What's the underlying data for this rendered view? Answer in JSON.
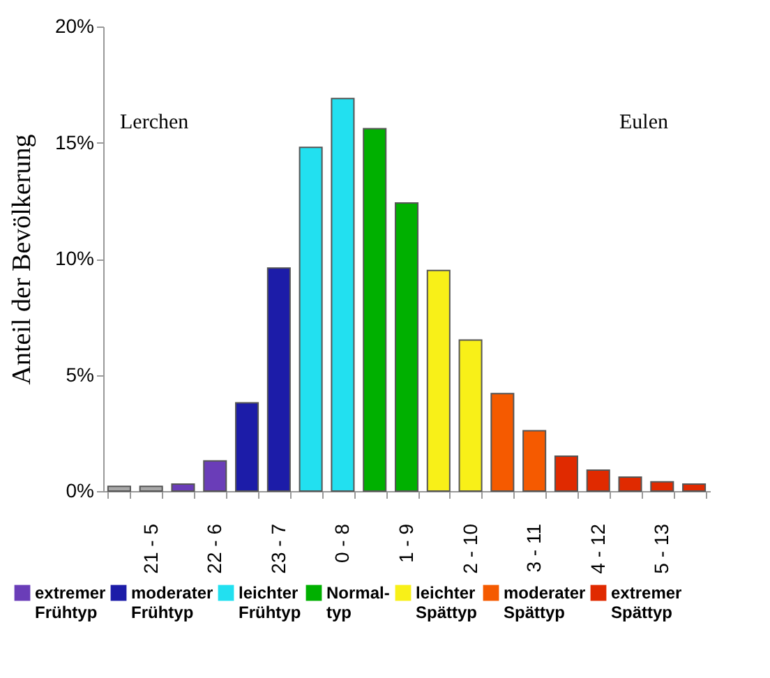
{
  "chart_data": {
    "type": "bar",
    "ylabel": "Anteil der Bevölkerung",
    "categories": [
      null,
      "21 - 5",
      null,
      "22 - 6",
      null,
      "23 - 7",
      null,
      "0 - 8",
      null,
      "1 - 9",
      null,
      "2 - 10",
      null,
      "3 - 11",
      null,
      "4 - 12",
      null,
      "5 - 13",
      null
    ],
    "series": [
      {
        "color": "#a8a8a8",
        "values": [
          0.2,
          0.2,
          null,
          null,
          null,
          null,
          null,
          null,
          null,
          null,
          null,
          null,
          null,
          null,
          null,
          null,
          null,
          null,
          null
        ]
      },
      {
        "name": "extremer Frühtyp",
        "color": "#6a3db8",
        "values": [
          null,
          null,
          0.3,
          1.3,
          null,
          null,
          null,
          null,
          null,
          null,
          null,
          null,
          null,
          null,
          null,
          null,
          null,
          null,
          null
        ]
      },
      {
        "name": "moderater Frühtyp",
        "color": "#1c1ca8",
        "values": [
          null,
          null,
          null,
          null,
          3.8,
          9.6,
          null,
          null,
          null,
          null,
          null,
          null,
          null,
          null,
          null,
          null,
          null,
          null,
          null
        ]
      },
      {
        "name": "leichter Frühtyp",
        "color": "#22e0f0",
        "values": [
          null,
          null,
          null,
          null,
          null,
          null,
          14.8,
          16.9,
          null,
          null,
          null,
          null,
          null,
          null,
          null,
          null,
          null,
          null,
          null
        ]
      },
      {
        "name": "Normal-typ",
        "color": "#00b000",
        "values": [
          null,
          null,
          null,
          null,
          null,
          null,
          null,
          null,
          15.6,
          12.4,
          null,
          null,
          null,
          null,
          null,
          null,
          null,
          null,
          null
        ]
      },
      {
        "name": "leichter Spättyp",
        "color": "#f8f018",
        "values": [
          null,
          null,
          null,
          null,
          null,
          null,
          null,
          null,
          null,
          null,
          9.5,
          6.5,
          null,
          null,
          null,
          null,
          null,
          null,
          null
        ]
      },
      {
        "name": "moderater Spättyp",
        "color": "#f55a00",
        "values": [
          null,
          null,
          null,
          null,
          null,
          null,
          null,
          null,
          null,
          null,
          null,
          null,
          4.2,
          2.6,
          null,
          null,
          null,
          null,
          null
        ]
      },
      {
        "name": "extremer Spättyp",
        "color": "#e02a00",
        "values": [
          null,
          null,
          null,
          null,
          null,
          null,
          null,
          null,
          null,
          null,
          null,
          null,
          null,
          null,
          1.5,
          0.9,
          0.6,
          0.4,
          0.3
        ]
      }
    ],
    "ylim": [
      0,
      20
    ],
    "yticks": [
      {
        "value": 0,
        "label": "0%"
      },
      {
        "value": 5,
        "label": "5%"
      },
      {
        "value": 10,
        "label": "10%"
      },
      {
        "value": 15,
        "label": "15%"
      },
      {
        "value": 20,
        "label": "20%"
      }
    ],
    "annotations": [
      "Lerchen",
      "Eulen"
    ],
    "legend": "bottom"
  }
}
